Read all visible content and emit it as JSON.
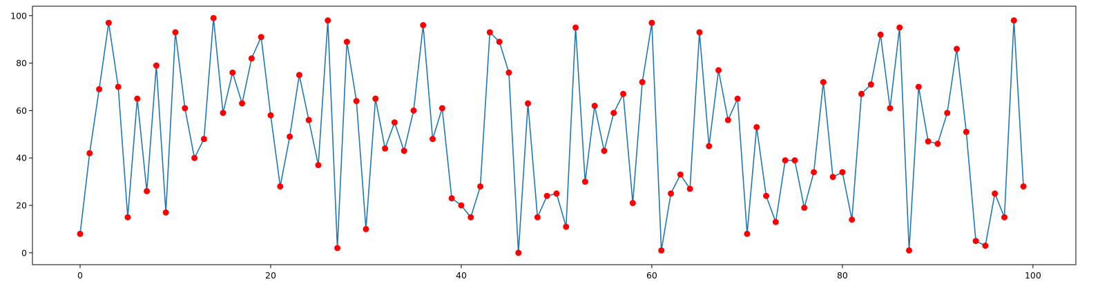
{
  "chart_data": {
    "type": "line",
    "title": "",
    "xlabel": "",
    "ylabel": "",
    "xlim": [
      -5,
      104.5
    ],
    "ylim": [
      -5,
      104
    ],
    "x_ticks": [
      0,
      20,
      40,
      60,
      80,
      100
    ],
    "y_ticks": [
      0,
      20,
      40,
      60,
      80,
      100
    ],
    "grid": false,
    "line_color": "#1f77b4",
    "marker_color": "#ff0000",
    "series": [
      {
        "x": [
          0,
          1,
          2,
          3,
          4,
          5,
          6,
          7,
          8,
          9,
          10,
          11,
          12,
          13,
          14,
          15,
          16,
          17,
          18,
          19,
          20,
          21,
          22,
          23,
          24,
          25,
          26,
          27,
          28,
          29,
          30,
          31,
          32,
          33,
          34,
          35,
          36,
          37,
          38,
          39,
          40,
          41,
          42,
          43,
          44,
          45,
          46,
          47,
          48,
          49,
          50,
          51,
          52,
          53,
          54,
          55,
          56,
          57,
          58,
          59,
          60,
          61,
          62,
          63,
          64,
          65,
          66,
          67,
          68,
          69,
          70,
          71,
          72,
          73,
          74,
          75,
          76,
          77,
          78,
          79,
          80,
          81,
          82,
          83,
          84,
          85,
          86,
          87,
          88,
          89,
          90,
          91,
          92,
          93,
          94,
          95,
          96,
          97,
          98,
          99
        ],
        "values": [
          8,
          42,
          69,
          97,
          70,
          15,
          65,
          26,
          79,
          17,
          93,
          61,
          40,
          48,
          99,
          59,
          76,
          63,
          82,
          91,
          58,
          28,
          49,
          75,
          56,
          37,
          98,
          2,
          89,
          64,
          10,
          65,
          44,
          55,
          43,
          60,
          96,
          48,
          61,
          23,
          20,
          15,
          28,
          93,
          89,
          76,
          0,
          63,
          15,
          24,
          25,
          11,
          95,
          30,
          62,
          43,
          59,
          67,
          21,
          72,
          97,
          1,
          25,
          33,
          27,
          93,
          45,
          77,
          56,
          65,
          8,
          53,
          24,
          13,
          39,
          39,
          19,
          34,
          72,
          32,
          34,
          14,
          67,
          71,
          92,
          61,
          95,
          1,
          70,
          47,
          46,
          59,
          86,
          51,
          5,
          3,
          25,
          15,
          98,
          28
        ]
      }
    ]
  }
}
